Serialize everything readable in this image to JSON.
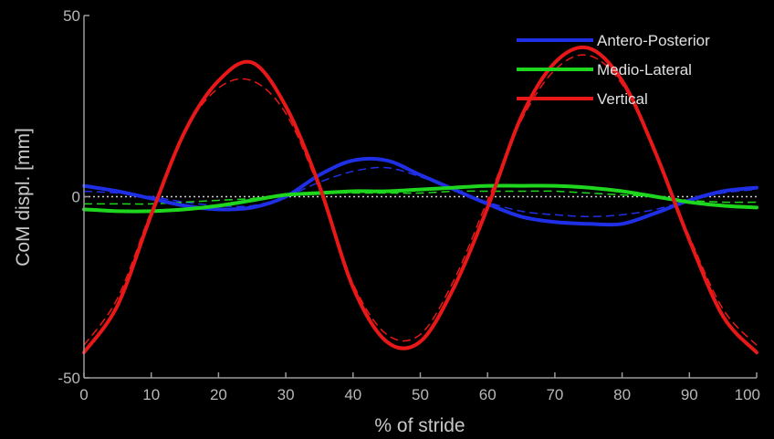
{
  "chart_data": {
    "type": "line",
    "xlabel": "% of stride",
    "ylabel": "CoM displ. [mm]",
    "xlim": [
      0,
      100
    ],
    "ylim": [
      -50,
      50
    ],
    "xticks": [
      "0",
      "10",
      "20",
      "30",
      "40",
      "50",
      "60",
      "70",
      "80",
      "90",
      "100"
    ],
    "yticks": [
      "50",
      "0",
      "-50"
    ],
    "legend_placement": "top-right",
    "grid": false,
    "zero_line": "dotted",
    "x": [
      0,
      5,
      10,
      15,
      20,
      25,
      30,
      35,
      40,
      45,
      50,
      55,
      60,
      65,
      70,
      75,
      80,
      85,
      90,
      95,
      100
    ],
    "series": [
      {
        "name": "Antero-Posterior",
        "color": "#1f2fe6",
        "values": [
          3,
          1.5,
          -0.5,
          -2.5,
          -3.5,
          -3,
          0,
          6,
          10,
          10,
          6,
          2,
          -2,
          -5.5,
          -7,
          -7.5,
          -7.5,
          -4.5,
          -1,
          1.5,
          2.5
        ],
        "reference": [
          1.5,
          1,
          0,
          -1.5,
          -2.5,
          -2.5,
          0,
          4,
          7,
          8,
          5.5,
          2,
          -1.5,
          -4,
          -5,
          -5.5,
          -5,
          -3.5,
          -1,
          1,
          2
        ]
      },
      {
        "name": "Medio-Lateral",
        "color": "#1fd61f",
        "values": [
          -3.5,
          -4,
          -4,
          -3.5,
          -2.5,
          -1,
          0.5,
          1,
          1.5,
          1.5,
          2,
          2.5,
          3,
          3,
          3,
          2.5,
          1.5,
          0,
          -1.5,
          -2.5,
          -3
        ],
        "reference": [
          -2,
          -2,
          -2,
          -1.5,
          -1,
          -0.5,
          0.5,
          1,
          1,
          1,
          1,
          1.5,
          1.5,
          1.5,
          1.5,
          1,
          0.5,
          0,
          -1,
          -1.5,
          -1.5
        ]
      },
      {
        "name": "Vertical",
        "color": "#e81818",
        "values": [
          -43,
          -30,
          -5,
          18,
          32,
          37,
          25,
          3,
          -25,
          -40,
          -40,
          -25,
          -3,
          22,
          37,
          41,
          32,
          12,
          -12,
          -33,
          -43
        ],
        "reference": [
          -41,
          -28,
          -4,
          18,
          30,
          32,
          23,
          2,
          -24,
          -38,
          -38,
          -23,
          -1,
          21,
          35,
          39,
          31,
          12,
          -11,
          -31,
          -41
        ]
      }
    ]
  }
}
